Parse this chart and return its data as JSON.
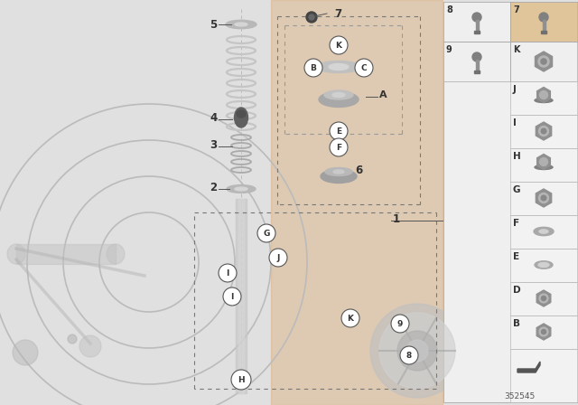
{
  "bg_color": "#e0e0e0",
  "panel_bg": "#f0f0f0",
  "orange_bg": "#dba96e",
  "part_number": "352545",
  "gray1": "#c0c0c0",
  "gray2": "#aaaaaa",
  "gray3": "#888888",
  "dark": "#333333",
  "white": "#ffffff",
  "right_top_labels": [
    "8",
    "7",
    "9",
    "K"
  ],
  "right_bottom_labels": [
    "J",
    "I",
    "H",
    "G",
    "F",
    "E",
    "D",
    "B"
  ],
  "upper_box_subparts": [
    "K",
    "B",
    "C",
    "A",
    "E",
    "F"
  ],
  "main_labels": [
    "1",
    "2",
    "3",
    "4",
    "5",
    "6",
    "7"
  ],
  "lower_box_labels": [
    "G",
    "J",
    "I",
    "I",
    "K",
    "9",
    "8",
    "H"
  ]
}
